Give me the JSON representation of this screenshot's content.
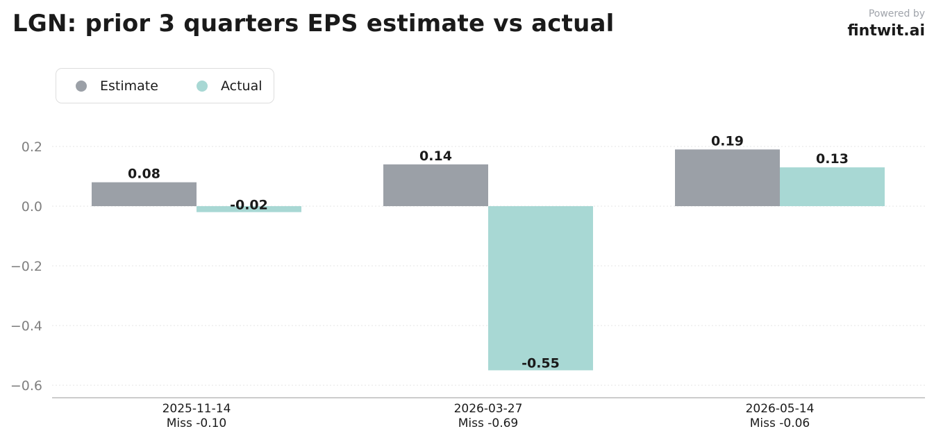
{
  "header": {
    "title": "LGN: prior 3 quarters EPS estimate vs actual",
    "powered_by": "Powered by",
    "brand": "fintwit.ai"
  },
  "colors": {
    "estimate": "#9ba0a7",
    "actual": "#a8d8d4",
    "grid": "#e6e6e6",
    "axis": "#bbbbbb"
  },
  "chart_data": {
    "type": "bar",
    "title": "LGN: prior 3 quarters EPS estimate vs actual",
    "categories": [
      "2025-11-14",
      "2026-03-27",
      "2026-05-14"
    ],
    "sublabels": [
      "Miss -0.10",
      "Miss -0.69",
      "Miss -0.06"
    ],
    "series": [
      {
        "name": "Estimate",
        "values": [
          0.08,
          0.14,
          0.19
        ],
        "labels": [
          "0.08",
          "0.14",
          "0.19"
        ],
        "color": "#9ba0a7"
      },
      {
        "name": "Actual",
        "values": [
          -0.02,
          -0.55,
          0.13
        ],
        "labels": [
          "-0.02",
          "-0.55",
          "0.13"
        ],
        "color": "#a8d8d4"
      }
    ],
    "yticks": [
      0.2,
      0.0,
      -0.2,
      -0.4,
      -0.6
    ],
    "ytick_labels": [
      "0.2",
      "0.0",
      "−0.2",
      "−0.4",
      "−0.6"
    ],
    "ylim": [
      -0.64,
      0.3
    ],
    "grid": true,
    "legend": "top-left",
    "xlabel": "",
    "ylabel": ""
  }
}
